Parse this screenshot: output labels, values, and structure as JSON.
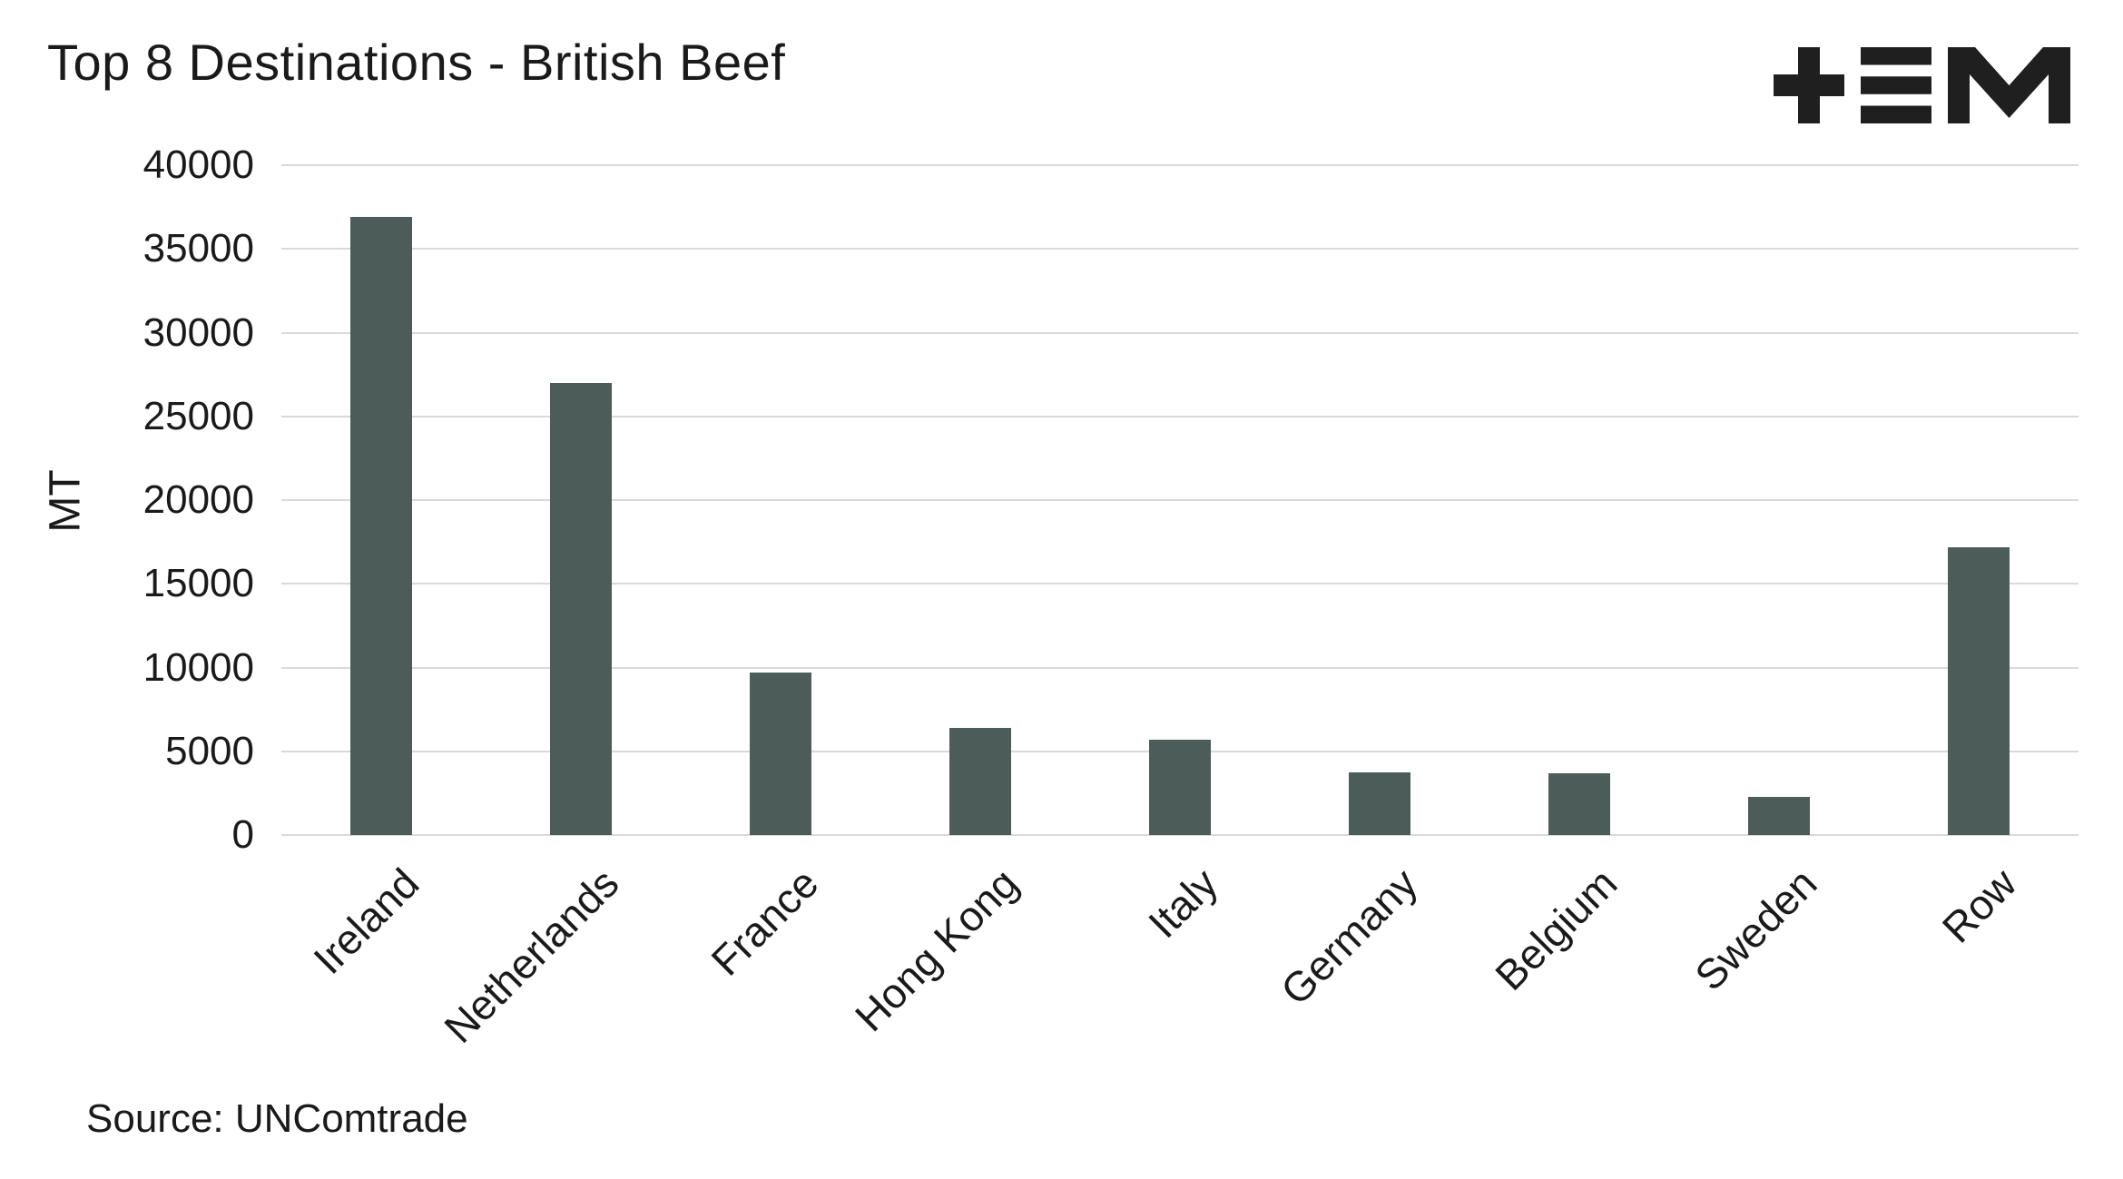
{
  "title": "Top 8 Destinations - British Beef",
  "source": "Source: UNComtrade",
  "logo": {
    "name": "tem-logo",
    "color": "#1f1f1f"
  },
  "colors": {
    "bar": "#4c5c58",
    "grid": "#d9d9d9",
    "text": "#1a1a1a"
  },
  "chart_data": {
    "type": "bar",
    "categories": [
      "Ireland",
      "Netherlands",
      "France",
      "Hong Kong",
      "Italy",
      "Germany",
      "Belgium",
      "Sweden",
      "Row"
    ],
    "values": [
      36900,
      27000,
      9700,
      6400,
      5700,
      3750,
      3700,
      2250,
      17200
    ],
    "title": "Top 8 Destinations - British Beef",
    "xlabel": "",
    "ylabel": "MT",
    "ylim": [
      0,
      40000
    ],
    "ytick_step": 5000,
    "yticks": [
      0,
      5000,
      10000,
      15000,
      20000,
      25000,
      30000,
      35000,
      40000
    ],
    "grid": true,
    "legend": "none",
    "source": "Source: UNComtrade"
  }
}
